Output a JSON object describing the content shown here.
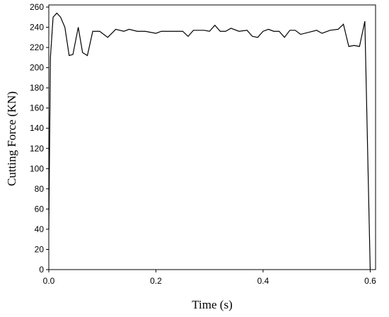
{
  "chart_data": {
    "type": "line",
    "x_label": "Time (s)",
    "y_label": "Cutting Force (KN)",
    "x": [
      0,
      0.003,
      0.008,
      0.015,
      0.022,
      0.03,
      0.038,
      0.045,
      0.055,
      0.063,
      0.072,
      0.082,
      0.095,
      0.11,
      0.125,
      0.14,
      0.15,
      0.165,
      0.18,
      0.2,
      0.21,
      0.23,
      0.25,
      0.26,
      0.27,
      0.29,
      0.3,
      0.31,
      0.32,
      0.33,
      0.34,
      0.355,
      0.37,
      0.38,
      0.39,
      0.4,
      0.41,
      0.42,
      0.43,
      0.44,
      0.45,
      0.46,
      0.47,
      0.485,
      0.5,
      0.51,
      0.525,
      0.54,
      0.55,
      0.56,
      0.57,
      0.58,
      0.59,
      0.6
    ],
    "series": [
      {
        "name": "Cutting Force",
        "color": "#000000",
        "values": [
          40,
          210,
          250,
          254,
          250,
          240,
          212,
          213,
          240,
          215,
          212,
          236,
          236,
          230,
          238,
          236,
          238,
          236,
          236,
          234,
          236,
          236,
          236,
          231,
          237,
          237,
          236,
          242,
          236,
          236,
          239,
          236,
          237,
          231,
          230,
          236,
          238,
          236,
          236,
          230,
          237,
          237,
          233,
          235,
          237,
          234,
          237,
          238,
          243,
          221,
          222,
          221,
          246,
          0
        ]
      }
    ],
    "xlim": [
      0,
      0.61
    ],
    "ylim": [
      0,
      260
    ],
    "xticks": [
      {
        "value": 0,
        "label": "0.0"
      },
      0.2,
      0.4,
      0.6
    ],
    "yticks": [
      0,
      20,
      40,
      60,
      80,
      100,
      120,
      140,
      160,
      180,
      200,
      220,
      240,
      260
    ]
  }
}
